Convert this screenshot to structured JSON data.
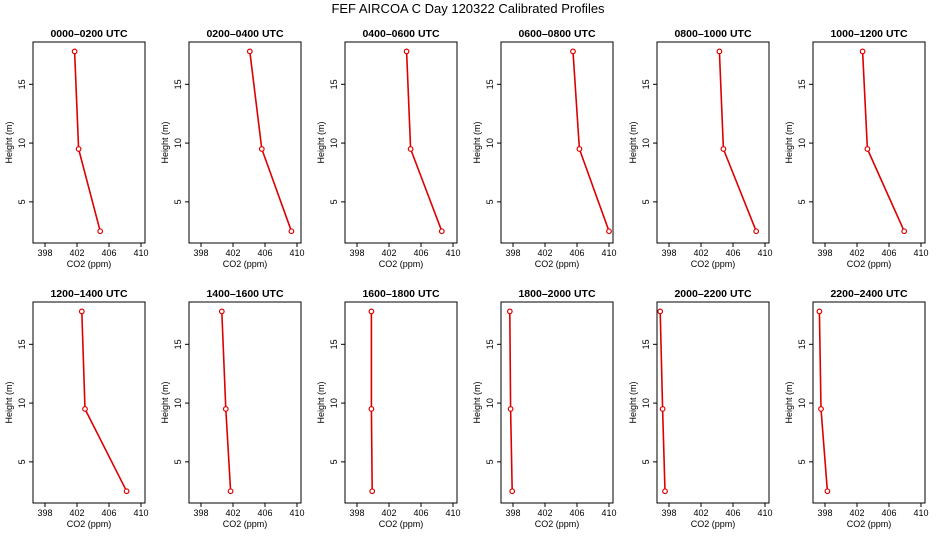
{
  "title": "FEF AIRCOA C  Day 120322  Calibrated Profiles",
  "colors": {
    "series": "#dd0000",
    "axis": "#000000",
    "background": "#ffffff"
  },
  "chart_data": [
    {
      "type": "line",
      "title": "0000–0200 UTC",
      "xlabel": "CO2 (ppm)",
      "ylabel": "Height (m)",
      "xlim": [
        396.5,
        410.5
      ],
      "ylim": [
        1.5,
        18.6
      ],
      "xticks": [
        398,
        402,
        406,
        410
      ],
      "yticks": [
        5,
        10,
        15
      ],
      "grid": false,
      "points": [
        {
          "x": 404.9,
          "y": 2.5
        },
        {
          "x": 402.2,
          "y": 9.5
        },
        {
          "x": 401.7,
          "y": 17.8
        }
      ]
    },
    {
      "type": "line",
      "title": "0200–0400 UTC",
      "xlabel": "CO2 (ppm)",
      "ylabel": "Height (m)",
      "xlim": [
        396.5,
        410.5
      ],
      "ylim": [
        1.5,
        18.6
      ],
      "xticks": [
        398,
        402,
        406,
        410
      ],
      "yticks": [
        5,
        10,
        15
      ],
      "grid": false,
      "points": [
        {
          "x": 409.3,
          "y": 2.5
        },
        {
          "x": 405.6,
          "y": 9.5
        },
        {
          "x": 404.1,
          "y": 17.8
        }
      ]
    },
    {
      "type": "line",
      "title": "0400–0600 UTC",
      "xlabel": "CO2 (ppm)",
      "ylabel": "Height (m)",
      "xlim": [
        396.5,
        410.5
      ],
      "ylim": [
        1.5,
        18.6
      ],
      "xticks": [
        398,
        402,
        406,
        410
      ],
      "yticks": [
        5,
        10,
        15
      ],
      "grid": false,
      "points": [
        {
          "x": 408.6,
          "y": 2.5
        },
        {
          "x": 404.7,
          "y": 9.5
        },
        {
          "x": 404.2,
          "y": 17.8
        }
      ]
    },
    {
      "type": "line",
      "title": "0600–0800 UTC",
      "xlabel": "CO2 (ppm)",
      "ylabel": "Height (m)",
      "xlim": [
        396.5,
        410.5
      ],
      "ylim": [
        1.5,
        18.6
      ],
      "xticks": [
        398,
        402,
        406,
        410
      ],
      "yticks": [
        5,
        10,
        15
      ],
      "grid": false,
      "points": [
        {
          "x": 410.0,
          "y": 2.5
        },
        {
          "x": 406.3,
          "y": 9.5
        },
        {
          "x": 405.5,
          "y": 17.8
        }
      ]
    },
    {
      "type": "line",
      "title": "0800–1000 UTC",
      "xlabel": "CO2 (ppm)",
      "ylabel": "Height (m)",
      "xlim": [
        396.5,
        410.5
      ],
      "ylim": [
        1.5,
        18.6
      ],
      "xticks": [
        398,
        402,
        406,
        410
      ],
      "yticks": [
        5,
        10,
        15
      ],
      "grid": false,
      "points": [
        {
          "x": 408.9,
          "y": 2.5
        },
        {
          "x": 404.8,
          "y": 9.5
        },
        {
          "x": 404.3,
          "y": 17.8
        }
      ]
    },
    {
      "type": "line",
      "title": "1000–1200 UTC",
      "xlabel": "CO2 (ppm)",
      "ylabel": "Height (m)",
      "xlim": [
        396.5,
        410.5
      ],
      "ylim": [
        1.5,
        18.6
      ],
      "xticks": [
        398,
        402,
        406,
        410
      ],
      "yticks": [
        5,
        10,
        15
      ],
      "grid": false,
      "points": [
        {
          "x": 407.9,
          "y": 2.5
        },
        {
          "x": 403.3,
          "y": 9.5
        },
        {
          "x": 402.7,
          "y": 17.8
        }
      ]
    },
    {
      "type": "line",
      "title": "1200–1400 UTC",
      "xlabel": "CO2 (ppm)",
      "ylabel": "Height (m)",
      "xlim": [
        396.5,
        410.5
      ],
      "ylim": [
        1.5,
        18.6
      ],
      "xticks": [
        398,
        402,
        406,
        410
      ],
      "yticks": [
        5,
        10,
        15
      ],
      "grid": false,
      "points": [
        {
          "x": 408.2,
          "y": 2.5
        },
        {
          "x": 403.0,
          "y": 9.5
        },
        {
          "x": 402.6,
          "y": 17.8
        }
      ]
    },
    {
      "type": "line",
      "title": "1400–1600 UTC",
      "xlabel": "CO2 (ppm)",
      "ylabel": "Height (m)",
      "xlim": [
        396.5,
        410.5
      ],
      "ylim": [
        1.5,
        18.6
      ],
      "xticks": [
        398,
        402,
        406,
        410
      ],
      "yticks": [
        5,
        10,
        15
      ],
      "grid": false,
      "points": [
        {
          "x": 401.7,
          "y": 2.5
        },
        {
          "x": 401.1,
          "y": 9.5
        },
        {
          "x": 400.6,
          "y": 17.8
        }
      ]
    },
    {
      "type": "line",
      "title": "1600–1800 UTC",
      "xlabel": "CO2 (ppm)",
      "ylabel": "Height (m)",
      "xlim": [
        396.5,
        410.5
      ],
      "ylim": [
        1.5,
        18.6
      ],
      "xticks": [
        398,
        402,
        406,
        410
      ],
      "yticks": [
        5,
        10,
        15
      ],
      "grid": false,
      "points": [
        {
          "x": 399.9,
          "y": 2.5
        },
        {
          "x": 399.8,
          "y": 9.5
        },
        {
          "x": 399.8,
          "y": 17.8
        }
      ]
    },
    {
      "type": "line",
      "title": "1800–2000 UTC",
      "xlabel": "CO2 (ppm)",
      "ylabel": "Height (m)",
      "xlim": [
        396.5,
        410.5
      ],
      "ylim": [
        1.5,
        18.6
      ],
      "xticks": [
        398,
        402,
        406,
        410
      ],
      "yticks": [
        5,
        10,
        15
      ],
      "grid": false,
      "points": [
        {
          "x": 397.9,
          "y": 2.5
        },
        {
          "x": 397.7,
          "y": 9.5
        },
        {
          "x": 397.6,
          "y": 17.8
        }
      ]
    },
    {
      "type": "line",
      "title": "2000–2200 UTC",
      "xlabel": "CO2 (ppm)",
      "ylabel": "Height (m)",
      "xlim": [
        396.5,
        410.5
      ],
      "ylim": [
        1.5,
        18.6
      ],
      "xticks": [
        398,
        402,
        406,
        410
      ],
      "yticks": [
        5,
        10,
        15
      ],
      "grid": false,
      "points": [
        {
          "x": 397.5,
          "y": 2.5
        },
        {
          "x": 397.2,
          "y": 9.5
        },
        {
          "x": 396.9,
          "y": 17.8
        }
      ]
    },
    {
      "type": "line",
      "title": "2200–2400 UTC",
      "xlabel": "CO2 (ppm)",
      "ylabel": "Height (m)",
      "xlim": [
        396.5,
        410.5
      ],
      "ylim": [
        1.5,
        18.6
      ],
      "xticks": [
        398,
        402,
        406,
        410
      ],
      "yticks": [
        5,
        10,
        15
      ],
      "grid": false,
      "points": [
        {
          "x": 398.3,
          "y": 2.5
        },
        {
          "x": 397.5,
          "y": 9.5
        },
        {
          "x": 397.3,
          "y": 17.8
        }
      ]
    }
  ]
}
